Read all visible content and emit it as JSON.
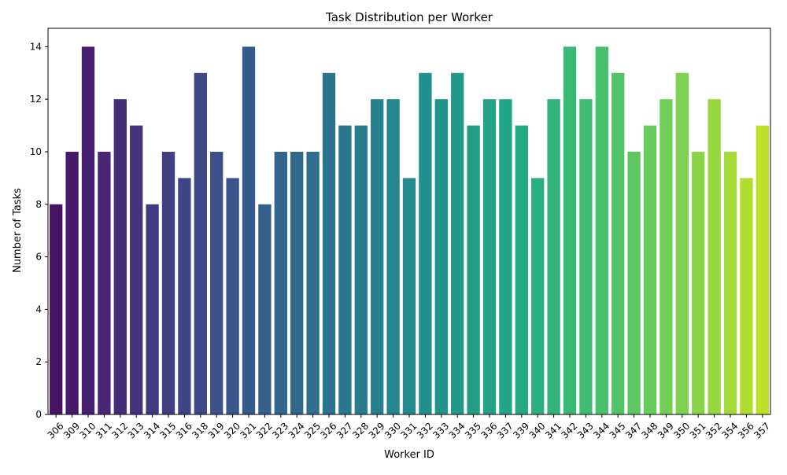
{
  "chart_data": {
    "type": "bar",
    "title": "Task Distribution per Worker",
    "xlabel": "Worker ID",
    "ylabel": "Number of Tasks",
    "ylim": [
      0,
      14.7
    ],
    "yticks": [
      0,
      2,
      4,
      6,
      8,
      10,
      12,
      14
    ],
    "grid": false,
    "legend": "none",
    "colormap": "viridis",
    "categories": [
      "306",
      "309",
      "310",
      "311",
      "312",
      "313",
      "314",
      "315",
      "316",
      "318",
      "319",
      "320",
      "321",
      "322",
      "323",
      "324",
      "325",
      "326",
      "327",
      "328",
      "329",
      "330",
      "331",
      "332",
      "333",
      "334",
      "335",
      "336",
      "337",
      "339",
      "340",
      "341",
      "342",
      "343",
      "344",
      "345",
      "347",
      "348",
      "349",
      "350",
      "351",
      "352",
      "354",
      "356",
      "357"
    ],
    "values": [
      8,
      10,
      14,
      10,
      12,
      11,
      8,
      10,
      9,
      13,
      10,
      9,
      14,
      8,
      10,
      10,
      10,
      13,
      11,
      11,
      12,
      12,
      9,
      13,
      12,
      13,
      11,
      12,
      12,
      11,
      9,
      12,
      14,
      12,
      14,
      13,
      10,
      11,
      12,
      13,
      10,
      12,
      10,
      9,
      11
    ]
  }
}
